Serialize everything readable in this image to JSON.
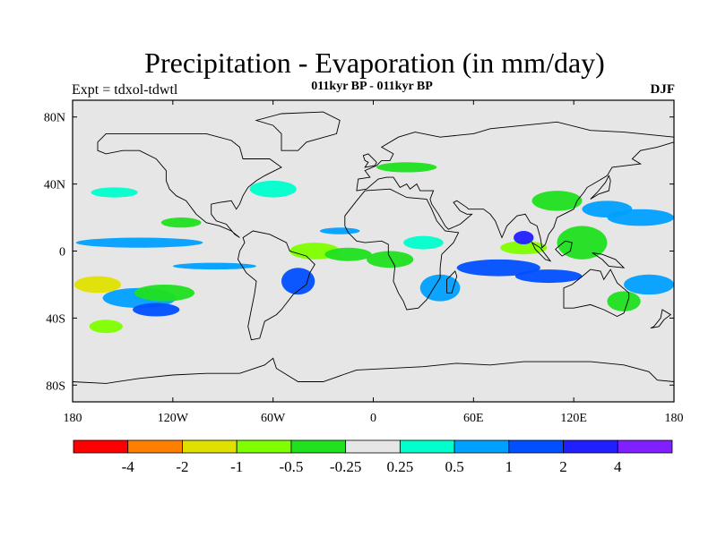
{
  "title": "Precipitation - Evaporation (in mm/day)",
  "left_string": "Expt = tdxol-tdwtl",
  "center_string": "011kyr BP - 011kyr BP",
  "right_string": "DJF",
  "map": {
    "lat_range": [
      -90,
      90
    ],
    "lon_range": [
      -180,
      180
    ],
    "ocean_color": "#e6e6e6",
    "lat_ticks": [
      {
        "value": 80,
        "label": "80N"
      },
      {
        "value": 40,
        "label": "40N"
      },
      {
        "value": 0,
        "label": "0"
      },
      {
        "value": -40,
        "label": "40S"
      },
      {
        "value": -80,
        "label": "80S"
      }
    ],
    "lon_ticks": [
      {
        "value": -180,
        "label": "180"
      },
      {
        "value": -120,
        "label": "120W"
      },
      {
        "value": -60,
        "label": "60W"
      },
      {
        "value": 0,
        "label": "0"
      },
      {
        "value": 60,
        "label": "60E"
      },
      {
        "value": 120,
        "label": "120E"
      },
      {
        "value": 180,
        "label": "180"
      }
    ]
  },
  "colorbar": {
    "colors": [
      "#ff0000",
      "#ff8000",
      "#e0e000",
      "#80ff00",
      "#20e020",
      "#e6e6e6",
      "#00ffcc",
      "#00a0ff",
      "#0050ff",
      "#2020ff",
      "#8020ff"
    ],
    "labels": [
      "-4",
      "-2",
      "-1",
      "-0.5",
      "-0.25",
      "0.25",
      "0.5",
      "1",
      "2",
      "4"
    ]
  },
  "anomaly_regions": [
    {
      "lon": -140,
      "lat": 5,
      "rx": 38,
      "ry": 3,
      "level": 7
    },
    {
      "lon": -165,
      "lat": -20,
      "rx": 14,
      "ry": 5,
      "level": 2
    },
    {
      "lon": -140,
      "lat": -28,
      "rx": 22,
      "ry": 6,
      "level": 7
    },
    {
      "lon": -130,
      "lat": -35,
      "rx": 14,
      "ry": 4,
      "level": 8
    },
    {
      "lon": -125,
      "lat": -25,
      "rx": 18,
      "ry": 5,
      "level": 4
    },
    {
      "lon": -160,
      "lat": -45,
      "rx": 10,
      "ry": 4,
      "level": 3
    },
    {
      "lon": -155,
      "lat": 35,
      "rx": 14,
      "ry": 3,
      "level": 6
    },
    {
      "lon": -115,
      "lat": 17,
      "rx": 12,
      "ry": 3,
      "level": 4
    },
    {
      "lon": -95,
      "lat": -9,
      "rx": 25,
      "ry": 2,
      "level": 7
    },
    {
      "lon": -60,
      "lat": 37,
      "rx": 14,
      "ry": 5,
      "level": 6
    },
    {
      "lon": -20,
      "lat": 12,
      "rx": 12,
      "ry": 2,
      "level": 7
    },
    {
      "lon": -35,
      "lat": 0,
      "rx": 15,
      "ry": 5,
      "level": 3
    },
    {
      "lon": -15,
      "lat": -2,
      "rx": 14,
      "ry": 4,
      "level": 4
    },
    {
      "lon": -45,
      "lat": -18,
      "rx": 10,
      "ry": 8,
      "level": 8
    },
    {
      "lon": 10,
      "lat": -5,
      "rx": 14,
      "ry": 5,
      "level": 4
    },
    {
      "lon": 30,
      "lat": 5,
      "rx": 12,
      "ry": 4,
      "level": 6
    },
    {
      "lon": 40,
      "lat": -22,
      "rx": 12,
      "ry": 8,
      "level": 7
    },
    {
      "lon": 75,
      "lat": -10,
      "rx": 25,
      "ry": 5,
      "level": 8
    },
    {
      "lon": 90,
      "lat": 2,
      "rx": 14,
      "ry": 4,
      "level": 3
    },
    {
      "lon": 90,
      "lat": 8,
      "rx": 6,
      "ry": 4,
      "level": 9
    },
    {
      "lon": 105,
      "lat": -15,
      "rx": 20,
      "ry": 4,
      "level": 8
    },
    {
      "lon": 125,
      "lat": 5,
      "rx": 15,
      "ry": 10,
      "level": 4
    },
    {
      "lon": 140,
      "lat": 25,
      "rx": 15,
      "ry": 5,
      "level": 7
    },
    {
      "lon": 160,
      "lat": 20,
      "rx": 20,
      "ry": 5,
      "level": 7
    },
    {
      "lon": 165,
      "lat": -20,
      "rx": 15,
      "ry": 6,
      "level": 7
    },
    {
      "lon": 150,
      "lat": -30,
      "rx": 10,
      "ry": 6,
      "level": 4
    },
    {
      "lon": 20,
      "lat": 50,
      "rx": 18,
      "ry": 3,
      "level": 4
    },
    {
      "lon": 110,
      "lat": 30,
      "rx": 15,
      "ry": 6,
      "level": 4
    }
  ],
  "continents": [
    {
      "name": "north-america",
      "coords": [
        [
          -165,
          65
        ],
        [
          -160,
          70
        ],
        [
          -140,
          70
        ],
        [
          -125,
          70
        ],
        [
          -100,
          70
        ],
        [
          -85,
          66
        ],
        [
          -80,
          62
        ],
        [
          -78,
          55
        ],
        [
          -62,
          55
        ],
        [
          -55,
          50
        ],
        [
          -65,
          45
        ],
        [
          -70,
          42
        ],
        [
          -75,
          38
        ],
        [
          -78,
          33
        ],
        [
          -80,
          28
        ],
        [
          -82,
          25
        ],
        [
          -85,
          30
        ],
        [
          -92,
          29
        ],
        [
          -97,
          28
        ],
        [
          -97,
          22
        ],
        [
          -94,
          18
        ],
        [
          -88,
          16
        ],
        [
          -83,
          10
        ],
        [
          -80,
          8
        ],
        [
          -85,
          12
        ],
        [
          -92,
          15
        ],
        [
          -100,
          17
        ],
        [
          -106,
          22
        ],
        [
          -112,
          30
        ],
        [
          -118,
          33
        ],
        [
          -122,
          37
        ],
        [
          -124,
          42
        ],
        [
          -124,
          48
        ],
        [
          -130,
          55
        ],
        [
          -140,
          60
        ],
        [
          -150,
          60
        ],
        [
          -160,
          58
        ],
        [
          -165,
          60
        ]
      ]
    },
    {
      "name": "south-america",
      "coords": [
        [
          -78,
          8
        ],
        [
          -72,
          12
        ],
        [
          -62,
          10
        ],
        [
          -52,
          5
        ],
        [
          -50,
          0
        ],
        [
          -40,
          -3
        ],
        [
          -35,
          -8
        ],
        [
          -38,
          -13
        ],
        [
          -40,
          -20
        ],
        [
          -48,
          -26
        ],
        [
          -55,
          -35
        ],
        [
          -58,
          -38
        ],
        [
          -65,
          -42
        ],
        [
          -68,
          -52
        ],
        [
          -73,
          -53
        ],
        [
          -75,
          -45
        ],
        [
          -73,
          -35
        ],
        [
          -71,
          -25
        ],
        [
          -70,
          -18
        ],
        [
          -76,
          -13
        ],
        [
          -81,
          -5
        ],
        [
          -80,
          0
        ],
        [
          -77,
          5
        ]
      ]
    },
    {
      "name": "africa",
      "coords": [
        [
          -17,
          21
        ],
        [
          -10,
          30
        ],
        [
          -5,
          36
        ],
        [
          10,
          37
        ],
        [
          20,
          32
        ],
        [
          32,
          31
        ],
        [
          35,
          25
        ],
        [
          38,
          18
        ],
        [
          43,
          12
        ],
        [
          51,
          11
        ],
        [
          48,
          5
        ],
        [
          41,
          -2
        ],
        [
          40,
          -10
        ],
        [
          40,
          -16
        ],
        [
          35,
          -24
        ],
        [
          32,
          -29
        ],
        [
          27,
          -34
        ],
        [
          20,
          -35
        ],
        [
          18,
          -30
        ],
        [
          15,
          -25
        ],
        [
          12,
          -18
        ],
        [
          13,
          -9
        ],
        [
          9,
          -2
        ],
        [
          9,
          4
        ],
        [
          5,
          6
        ],
        [
          -5,
          5
        ],
        [
          -10,
          6
        ],
        [
          -15,
          11
        ],
        [
          -17,
          15
        ]
      ]
    },
    {
      "name": "eurasia",
      "coords": [
        [
          -10,
          36
        ],
        [
          -9,
          43
        ],
        [
          -2,
          44
        ],
        [
          -5,
          48
        ],
        [
          2,
          51
        ],
        [
          5,
          54
        ],
        [
          10,
          54
        ],
        [
          12,
          58
        ],
        [
          5,
          62
        ],
        [
          15,
          68
        ],
        [
          25,
          71
        ],
        [
          40,
          68
        ],
        [
          60,
          70
        ],
        [
          70,
          73
        ],
        [
          90,
          75
        ],
        [
          110,
          77
        ],
        [
          130,
          72
        ],
        [
          150,
          71
        ],
        [
          170,
          69
        ],
        [
          180,
          68
        ],
        [
          180,
          65
        ],
        [
          170,
          62
        ],
        [
          160,
          60
        ],
        [
          155,
          55
        ],
        [
          160,
          52
        ],
        [
          143,
          50
        ],
        [
          140,
          45
        ],
        [
          135,
          42
        ],
        [
          128,
          38
        ],
        [
          126,
          35
        ],
        [
          122,
          30
        ],
        [
          120,
          25
        ],
        [
          110,
          20
        ],
        [
          108,
          14
        ],
        [
          105,
          10
        ],
        [
          103,
          4
        ],
        [
          101,
          2
        ],
        [
          100,
          8
        ],
        [
          98,
          15
        ],
        [
          94,
          17
        ],
        [
          91,
          22
        ],
        [
          86,
          21
        ],
        [
          80,
          15
        ],
        [
          77,
          8
        ],
        [
          73,
          18
        ],
        [
          70,
          22
        ],
        [
          66,
          25
        ],
        [
          57,
          25
        ],
        [
          56,
          26
        ],
        [
          50,
          30
        ],
        [
          48,
          29
        ],
        [
          52,
          24
        ],
        [
          56,
          22
        ],
        [
          59,
          22
        ],
        [
          52,
          16
        ],
        [
          45,
          13
        ],
        [
          43,
          15
        ],
        [
          39,
          22
        ],
        [
          35,
          28
        ],
        [
          34,
          31
        ],
        [
          36,
          36
        ],
        [
          28,
          36
        ],
        [
          26,
          40
        ],
        [
          22,
          37
        ],
        [
          20,
          40
        ],
        [
          16,
          38
        ],
        [
          12,
          44
        ],
        [
          8,
          44
        ],
        [
          3,
          43
        ],
        [
          -4,
          37
        ]
      ]
    },
    {
      "name": "australia",
      "coords": [
        [
          114,
          -22
        ],
        [
          114,
          -34
        ],
        [
          120,
          -34
        ],
        [
          130,
          -32
        ],
        [
          138,
          -35
        ],
        [
          146,
          -39
        ],
        [
          150,
          -37
        ],
        [
          153,
          -28
        ],
        [
          153,
          -25
        ],
        [
          146,
          -19
        ],
        [
          142,
          -11
        ],
        [
          138,
          -17
        ],
        [
          136,
          -12
        ],
        [
          130,
          -11
        ],
        [
          124,
          -16
        ],
        [
          119,
          -20
        ]
      ]
    },
    {
      "name": "antarctica",
      "coords": [
        [
          -180,
          -78
        ],
        [
          -160,
          -79
        ],
        [
          -140,
          -76
        ],
        [
          -120,
          -74
        ],
        [
          -100,
          -73
        ],
        [
          -80,
          -73
        ],
        [
          -65,
          -68
        ],
        [
          -60,
          -64
        ],
        [
          -58,
          -70
        ],
        [
          -45,
          -78
        ],
        [
          -30,
          -78
        ],
        [
          -10,
          -71
        ],
        [
          10,
          -70
        ],
        [
          30,
          -69
        ],
        [
          50,
          -67
        ],
        [
          70,
          -68
        ],
        [
          90,
          -66
        ],
        [
          110,
          -66
        ],
        [
          130,
          -66
        ],
        [
          150,
          -68
        ],
        [
          165,
          -72
        ],
        [
          170,
          -77
        ],
        [
          180,
          -78
        ],
        [
          180,
          -90
        ],
        [
          -180,
          -90
        ]
      ]
    },
    {
      "name": "greenland",
      "coords": [
        [
          -55,
          60
        ],
        [
          -45,
          60
        ],
        [
          -40,
          65
        ],
        [
          -22,
          70
        ],
        [
          -20,
          78
        ],
        [
          -30,
          83
        ],
        [
          -55,
          82
        ],
        [
          -70,
          78
        ],
        [
          -60,
          75
        ],
        [
          -55,
          70
        ]
      ]
    },
    {
      "name": "uk",
      "coords": [
        [
          -5,
          50
        ],
        [
          1,
          51
        ],
        [
          2,
          53
        ],
        [
          -3,
          58
        ],
        [
          -6,
          57
        ],
        [
          -5,
          54
        ],
        [
          -3,
          53
        ]
      ]
    },
    {
      "name": "madagascar",
      "coords": [
        [
          44,
          -25
        ],
        [
          47,
          -25
        ],
        [
          50,
          -15
        ],
        [
          49,
          -12
        ],
        [
          44,
          -17
        ]
      ]
    },
    {
      "name": "japan",
      "coords": [
        [
          130,
          31
        ],
        [
          135,
          34
        ],
        [
          141,
          36
        ],
        [
          142,
          42
        ],
        [
          141,
          45
        ],
        [
          139,
          41
        ],
        [
          134,
          35
        ]
      ]
    },
    {
      "name": "borneo",
      "coords": [
        [
          109,
          1
        ],
        [
          113,
          -3
        ],
        [
          118,
          0
        ],
        [
          119,
          5
        ],
        [
          115,
          6
        ],
        [
          110,
          2
        ]
      ]
    },
    {
      "name": "sumatra",
      "coords": [
        [
          95,
          5
        ],
        [
          100,
          2
        ],
        [
          106,
          -6
        ],
        [
          103,
          -5
        ],
        [
          97,
          1
        ]
      ]
    },
    {
      "name": "new-guinea",
      "coords": [
        [
          131,
          -1
        ],
        [
          137,
          -2
        ],
        [
          145,
          -5
        ],
        [
          150,
          -10
        ],
        [
          141,
          -9
        ],
        [
          137,
          -5
        ]
      ]
    },
    {
      "name": "new-zealand",
      "coords": [
        [
          166,
          -46
        ],
        [
          171,
          -45
        ],
        [
          174,
          -41
        ],
        [
          178,
          -38
        ],
        [
          173,
          -35
        ],
        [
          172,
          -40
        ],
        [
          168,
          -45
        ]
      ]
    }
  ]
}
